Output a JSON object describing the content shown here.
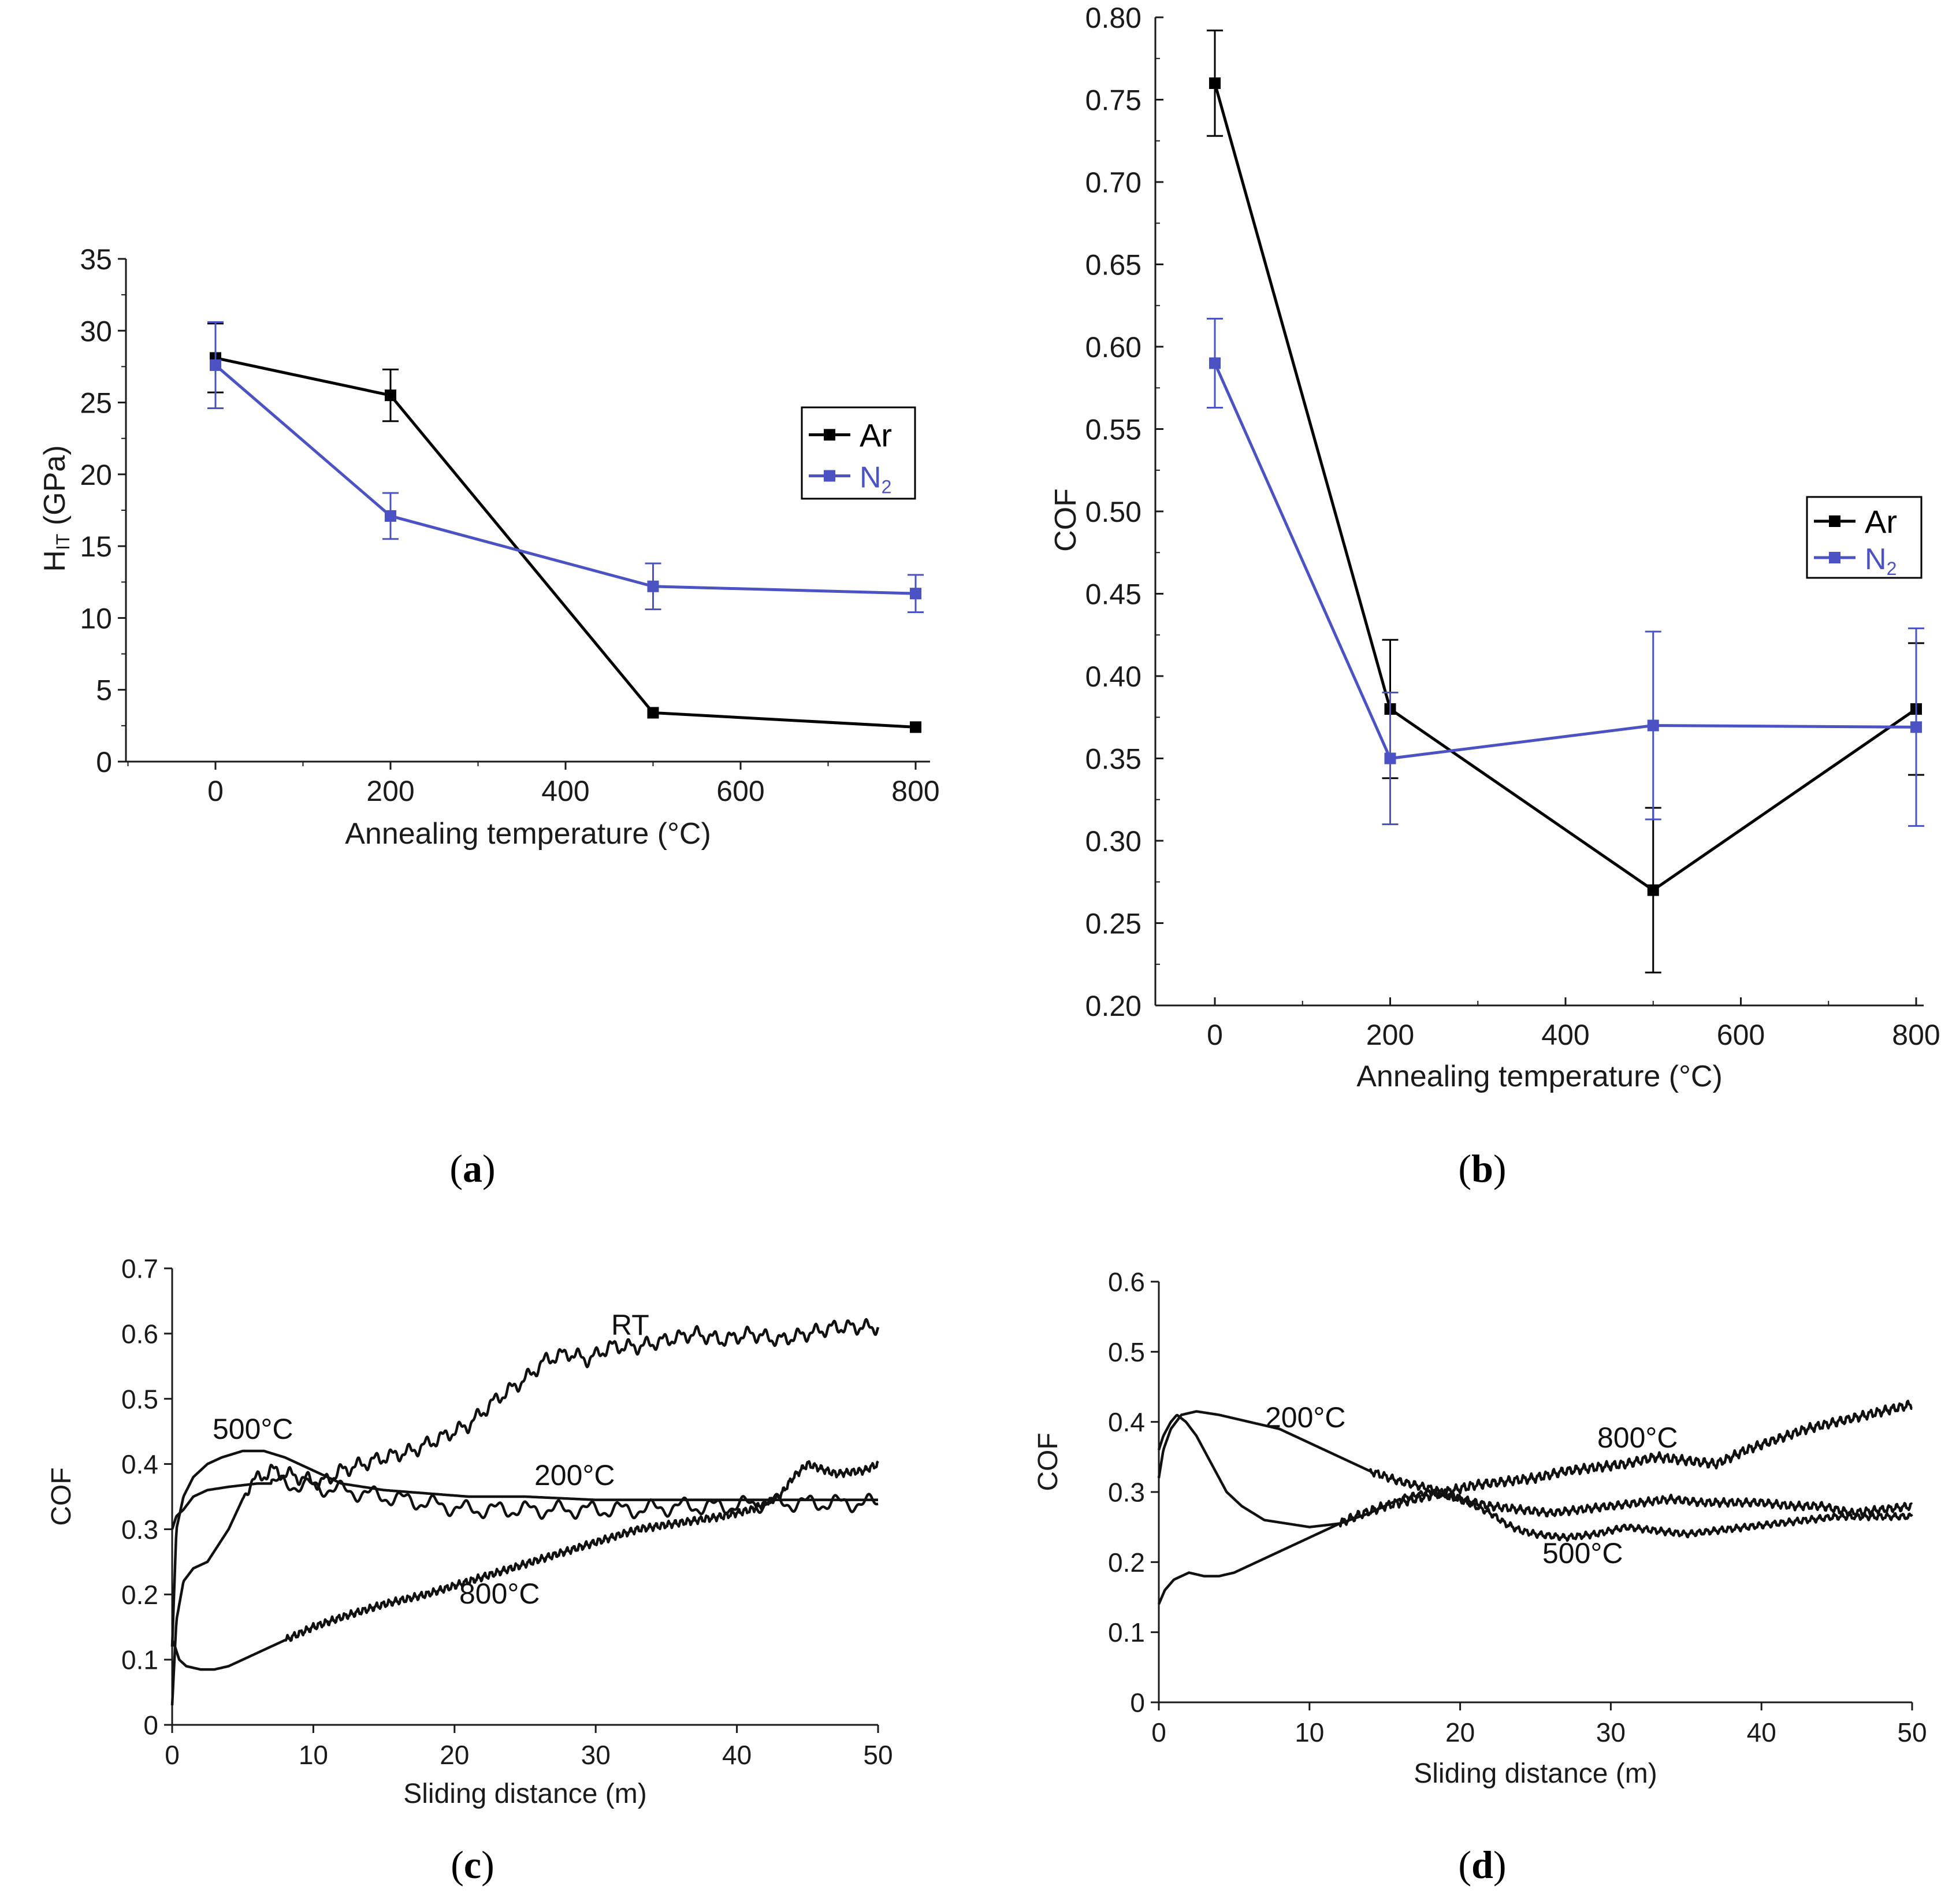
{
  "colors": {
    "ar": "#000000",
    "n2": "#4a52c4",
    "curve": "#111111",
    "axis": "#1a1a1a"
  },
  "chart_data": [
    {
      "panel": "(a)",
      "panel_letter": "a",
      "type": "line",
      "xlabel": "Annealing temperature (°C)",
      "ylabel_main": "H",
      "ylabel_sub": "IT",
      "ylabel_tail": " (GPa)",
      "xlim": [
        -100,
        810
      ],
      "ylim": [
        0,
        35
      ],
      "x_ticks": [
        0,
        200,
        400,
        600,
        800
      ],
      "y_ticks": [
        0,
        5,
        10,
        15,
        20,
        25,
        30,
        35
      ],
      "x_tick_labels": [
        "0",
        "200",
        "400",
        "600",
        "800"
      ],
      "y_tick_labels": [
        "0",
        "5",
        "10",
        "15",
        "20",
        "25",
        "30",
        "35"
      ],
      "legend": {
        "position": "right",
        "entries": [
          "Ar",
          "N",
          "2"
        ]
      },
      "series": [
        {
          "name": "Ar",
          "x": [
            0,
            200,
            500,
            800
          ],
          "y": [
            28.1,
            25.5,
            3.4,
            2.4
          ],
          "err": [
            2.4,
            1.8,
            0,
            0
          ]
        },
        {
          "name": "N2",
          "x": [
            0,
            200,
            500,
            800
          ],
          "y": [
            27.6,
            17.1,
            12.2,
            11.7
          ],
          "err": [
            3.0,
            1.6,
            1.6,
            1.3
          ]
        }
      ]
    },
    {
      "panel": "(b)",
      "panel_letter": "b",
      "type": "line",
      "xlabel": "Annealing temperature (°C)",
      "ylabel": "COF",
      "xlim": [
        -70,
        800
      ],
      "ylim": [
        0.2,
        0.8
      ],
      "x_ticks": [
        0,
        200,
        400,
        600,
        800
      ],
      "y_ticks": [
        0.2,
        0.25,
        0.3,
        0.35,
        0.4,
        0.45,
        0.5,
        0.55,
        0.6,
        0.65,
        0.7,
        0.75,
        0.8
      ],
      "x_tick_labels": [
        "0",
        "200",
        "400",
        "600",
        "800"
      ],
      "y_tick_labels": [
        "0.20",
        "0.25",
        "0.30",
        "0.35",
        "0.40",
        "0.45",
        "0.50",
        "0.55",
        "0.60",
        "0.65",
        "0.70",
        "0.75",
        "0.80"
      ],
      "legend": {
        "position": "right",
        "entries": [
          "Ar",
          "N",
          "2"
        ]
      },
      "series": [
        {
          "name": "Ar",
          "x": [
            0,
            200,
            500,
            800
          ],
          "y": [
            0.76,
            0.38,
            0.27,
            0.38
          ],
          "err": [
            0.032,
            0.042,
            0.05,
            0.04
          ]
        },
        {
          "name": "N2",
          "x": [
            0,
            200,
            500,
            800
          ],
          "y": [
            0.59,
            0.35,
            0.37,
            0.369
          ],
          "err": [
            0.027,
            0.04,
            0.057,
            0.06
          ]
        }
      ]
    },
    {
      "panel": "(c)",
      "panel_letter": "c",
      "type": "line",
      "xlabel": "Sliding distance (m)",
      "ylabel": "COF",
      "xlim": [
        0,
        50
      ],
      "ylim": [
        0,
        0.7
      ],
      "x_ticks": [
        0,
        10,
        20,
        30,
        40,
        50
      ],
      "y_ticks": [
        0,
        0.1,
        0.2,
        0.3,
        0.4,
        0.5,
        0.6,
        0.7
      ],
      "x_tick_labels": [
        "0",
        "10",
        "20",
        "30",
        "40",
        "50"
      ],
      "y_tick_labels": [
        "0",
        "0.1",
        "0.2",
        "0.3",
        "0.4",
        "0.5",
        "0.6",
        "0.7"
      ],
      "annotations": [
        "RT",
        "500°C",
        "200°C",
        "800°C"
      ],
      "series": [
        {
          "name": "RT",
          "x": [
            0,
            0.3,
            0.8,
            1.5,
            2.5,
            4,
            5.5,
            7,
            9,
            10.5,
            12,
            13.5,
            15,
            17,
            19,
            21,
            23,
            25,
            26.5,
            28,
            29.5,
            31,
            33,
            35,
            37,
            39,
            41,
            43,
            45,
            47,
            49,
            50
          ],
          "y": [
            0.03,
            0.16,
            0.22,
            0.24,
            0.25,
            0.3,
            0.37,
            0.39,
            0.38,
            0.37,
            0.39,
            0.4,
            0.41,
            0.42,
            0.44,
            0.46,
            0.5,
            0.53,
            0.56,
            0.57,
            0.56,
            0.58,
            0.58,
            0.59,
            0.6,
            0.59,
            0.6,
            0.59,
            0.6,
            0.61,
            0.61,
            0.61
          ],
          "noise": 0.012,
          "period": 1.2,
          "noise_start": 5
        },
        {
          "name": "500°C",
          "x": [
            0,
            0.3,
            0.8,
            1.5,
            2.5,
            3.5,
            5,
            6.5,
            8,
            10,
            12,
            15,
            18,
            21,
            25,
            30,
            35,
            40,
            45,
            50
          ],
          "y": [
            0.12,
            0.3,
            0.35,
            0.38,
            0.4,
            0.41,
            0.42,
            0.42,
            0.41,
            0.39,
            0.37,
            0.36,
            0.355,
            0.35,
            0.35,
            0.345,
            0.345,
            0.345,
            0.345,
            0.345
          ],
          "noise": 0.0,
          "period": 1,
          "noise_start": 0
        },
        {
          "name": "200°C",
          "x": [
            0,
            0.3,
            0.8,
            1.5,
            2.5,
            4,
            6,
            8,
            10,
            12,
            15,
            18,
            21,
            24,
            27,
            30,
            33,
            36,
            39,
            42,
            45,
            48,
            50
          ],
          "y": [
            0.3,
            0.32,
            0.33,
            0.35,
            0.36,
            0.365,
            0.37,
            0.37,
            0.365,
            0.36,
            0.35,
            0.34,
            0.33,
            0.33,
            0.33,
            0.33,
            0.33,
            0.335,
            0.335,
            0.34,
            0.34,
            0.34,
            0.34
          ],
          "noise": 0.014,
          "period": 2.2,
          "noise_start": 7
        },
        {
          "name": "800°C",
          "x": [
            0,
            0.2,
            0.5,
            1,
            2,
            3,
            4,
            5,
            6,
            8,
            10,
            12,
            15,
            18,
            21,
            24,
            27,
            30,
            33,
            36,
            39,
            41,
            43,
            44,
            45,
            47,
            49,
            50
          ],
          "y": [
            0.13,
            0.12,
            0.1,
            0.09,
            0.085,
            0.085,
            0.09,
            0.1,
            0.11,
            0.13,
            0.15,
            0.165,
            0.185,
            0.2,
            0.22,
            0.24,
            0.26,
            0.28,
            0.3,
            0.31,
            0.32,
            0.33,
            0.35,
            0.38,
            0.4,
            0.385,
            0.39,
            0.4
          ],
          "noise": 0.006,
          "period": 0.45,
          "noise_start": 8
        }
      ]
    },
    {
      "panel": "(d)",
      "panel_letter": "d",
      "type": "line",
      "xlabel": "Sliding distance (m)",
      "ylabel": "COF",
      "xlim": [
        0,
        50
      ],
      "ylim": [
        0,
        0.6
      ],
      "x_ticks": [
        0,
        10,
        20,
        30,
        40,
        50
      ],
      "y_ticks": [
        0,
        0.1,
        0.2,
        0.3,
        0.4,
        0.5,
        0.6
      ],
      "x_tick_labels": [
        "0",
        "10",
        "20",
        "30",
        "40",
        "50"
      ],
      "y_tick_labels": [
        "0",
        "0.1",
        "0.2",
        "0.3",
        "0.4",
        "0.5",
        "0.6"
      ],
      "annotations": [
        "200°C",
        "800°C",
        "500°C"
      ],
      "series": [
        {
          "name": "200°C",
          "x": [
            0,
            0.3,
            0.8,
            1.5,
            2.5,
            4,
            6,
            8,
            10,
            12,
            14,
            16,
            18,
            20,
            22,
            24,
            26,
            28,
            30,
            32,
            34,
            36,
            38,
            40,
            42,
            44,
            46,
            48,
            50
          ],
          "y": [
            0.32,
            0.36,
            0.39,
            0.41,
            0.415,
            0.41,
            0.4,
            0.39,
            0.37,
            0.35,
            0.33,
            0.315,
            0.305,
            0.29,
            0.28,
            0.275,
            0.27,
            0.275,
            0.28,
            0.285,
            0.29,
            0.285,
            0.285,
            0.285,
            0.28,
            0.28,
            0.27,
            0.275,
            0.28
          ],
          "noise": 0.006,
          "period": 0.5,
          "noise_start": 14
        },
        {
          "name": "500°C",
          "x": [
            0,
            0.3,
            0.8,
            1.2,
            1.8,
            2.5,
            3.5,
            4.5,
            5.5,
            7,
            8.5,
            10,
            12,
            14,
            16,
            18,
            20,
            22,
            23,
            24,
            25,
            27,
            29,
            31,
            33,
            35,
            37,
            39,
            41,
            43,
            45,
            47,
            50
          ],
          "y": [
            0.36,
            0.38,
            0.4,
            0.41,
            0.4,
            0.38,
            0.34,
            0.3,
            0.28,
            0.26,
            0.255,
            0.25,
            0.255,
            0.27,
            0.29,
            0.3,
            0.29,
            0.27,
            0.255,
            0.245,
            0.24,
            0.235,
            0.24,
            0.25,
            0.245,
            0.24,
            0.245,
            0.25,
            0.255,
            0.26,
            0.265,
            0.265,
            0.265
          ],
          "noise": 0.005,
          "period": 0.5,
          "noise_start": 16
        },
        {
          "name": "800°C",
          "x": [
            0,
            0.4,
            1,
            2,
            3,
            4,
            5,
            7,
            9,
            11,
            13,
            15,
            17,
            19,
            21,
            23,
            25,
            27,
            29,
            31,
            33,
            35,
            37,
            39,
            41,
            43,
            45,
            47,
            49,
            50
          ],
          "y": [
            0.14,
            0.16,
            0.175,
            0.185,
            0.18,
            0.18,
            0.185,
            0.205,
            0.225,
            0.245,
            0.265,
            0.28,
            0.29,
            0.3,
            0.31,
            0.315,
            0.32,
            0.33,
            0.335,
            0.34,
            0.35,
            0.345,
            0.34,
            0.36,
            0.375,
            0.39,
            0.4,
            0.41,
            0.42,
            0.425
          ],
          "noise": 0.007,
          "period": 0.5,
          "noise_start": 12
        }
      ]
    }
  ]
}
